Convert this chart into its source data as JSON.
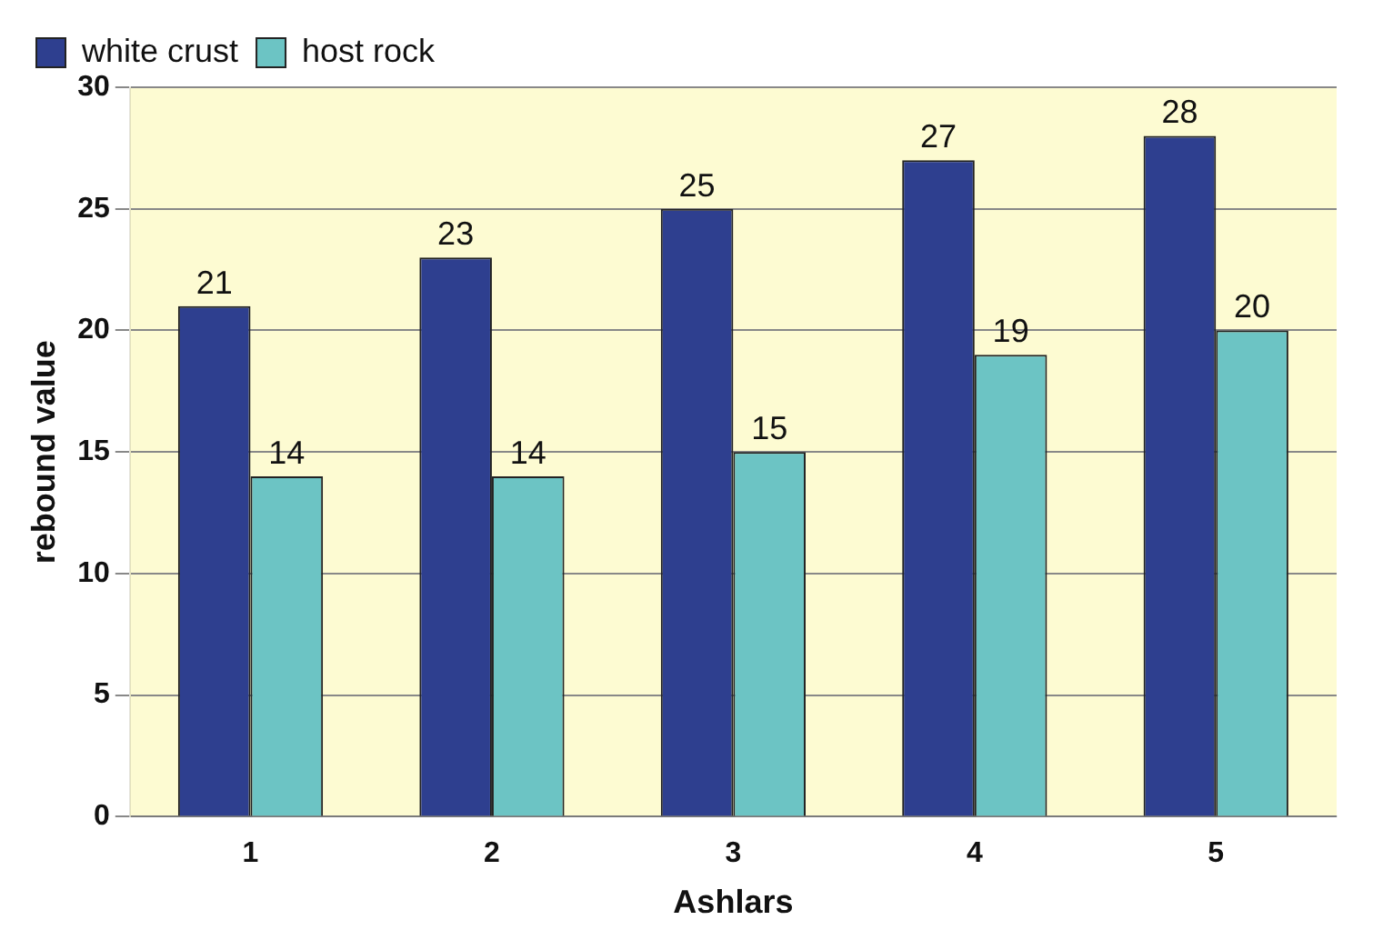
{
  "chart_data": {
    "type": "bar",
    "xlabel": "Ashlars",
    "ylabel": "rebound value",
    "categories": [
      "1",
      "2",
      "3",
      "4",
      "5"
    ],
    "series": [
      {
        "name": "white crust",
        "color": "#2e3f8f",
        "values": [
          21,
          23,
          25,
          27,
          28
        ]
      },
      {
        "name": "host rock",
        "color": "#6cc4c4",
        "values": [
          14,
          14,
          15,
          19,
          20
        ]
      }
    ],
    "ylim": [
      0,
      30
    ],
    "yticks": [
      0,
      5,
      10,
      15,
      20,
      25,
      30
    ],
    "grid": "y",
    "legend": "top left",
    "data_labels": true
  }
}
